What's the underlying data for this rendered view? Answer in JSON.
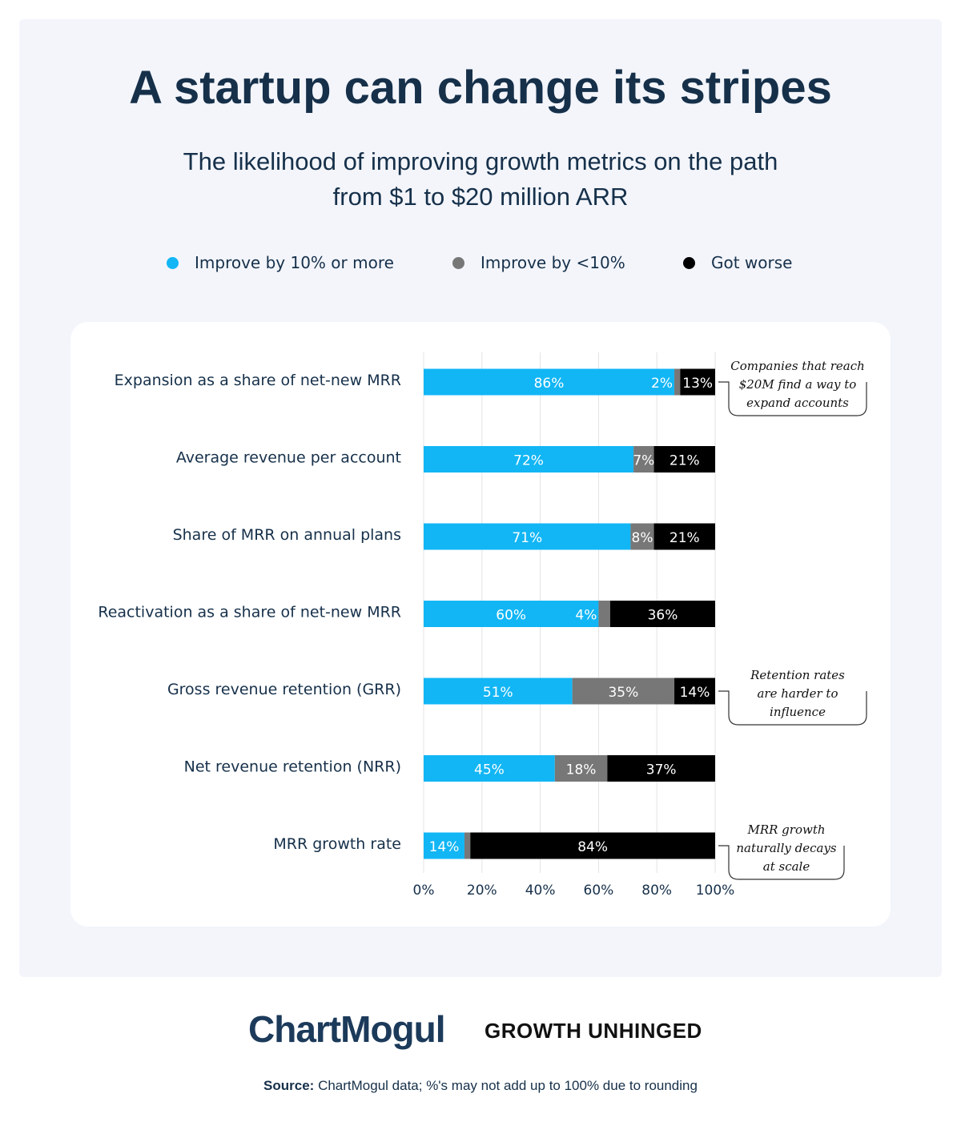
{
  "title": "A startup can change its stripes",
  "subtitle_line1": "The likelihood of improving growth metrics on the path",
  "subtitle_line2": "from $1 to $20 million ARR",
  "colors": {
    "improve_big": "#12b6f5",
    "improve_small": "#777777",
    "worse": "#000000",
    "title": "#16304a"
  },
  "legend": [
    {
      "label": "Improve by 10% or more",
      "color": "#12b6f5"
    },
    {
      "label": "Improve by <10%",
      "color": "#777777"
    },
    {
      "label": "Got worse",
      "color": "#000000"
    }
  ],
  "chart_data": {
    "type": "bar",
    "orientation": "horizontal",
    "stacked": true,
    "categories": [
      "Expansion as a share of net-new MRR",
      "Average revenue per account",
      "Share of MRR on annual plans",
      "Reactivation as a share of net-new MRR",
      "Gross revenue retention (GRR)",
      "Net revenue retention (NRR)",
      "MRR growth rate"
    ],
    "series": [
      {
        "name": "Improve by 10% or more",
        "color": "#12b6f5",
        "values": [
          86,
          72,
          71,
          60,
          51,
          45,
          14
        ]
      },
      {
        "name": "Improve by <10%",
        "color": "#777777",
        "values": [
          2,
          7,
          8,
          4,
          35,
          18,
          2
        ]
      },
      {
        "name": "Got worse",
        "color": "#000000",
        "values": [
          13,
          21,
          21,
          36,
          14,
          37,
          84
        ]
      }
    ],
    "xlim": [
      0,
      100
    ],
    "xticks": [
      "0%",
      "20%",
      "40%",
      "60%",
      "80%",
      "100%"
    ],
    "grid": true,
    "legend_placement": "top",
    "annotations": [
      {
        "row": 0,
        "lines": [
          "Companies that reach",
          "$20M find a way to",
          "expand accounts"
        ]
      },
      {
        "row": 4,
        "lines": [
          "Retention rates",
          "are harder to",
          "influence"
        ]
      },
      {
        "row": 6,
        "lines": [
          "MRR growth",
          "naturally decays",
          "at scale"
        ]
      }
    ]
  },
  "footer": {
    "brand": "ChartMogul",
    "brand2": "GROWTH UNHINGED",
    "source_label": "Source:",
    "source_text": " ChartMogul data; %'s may not add up to 100% due to rounding"
  }
}
